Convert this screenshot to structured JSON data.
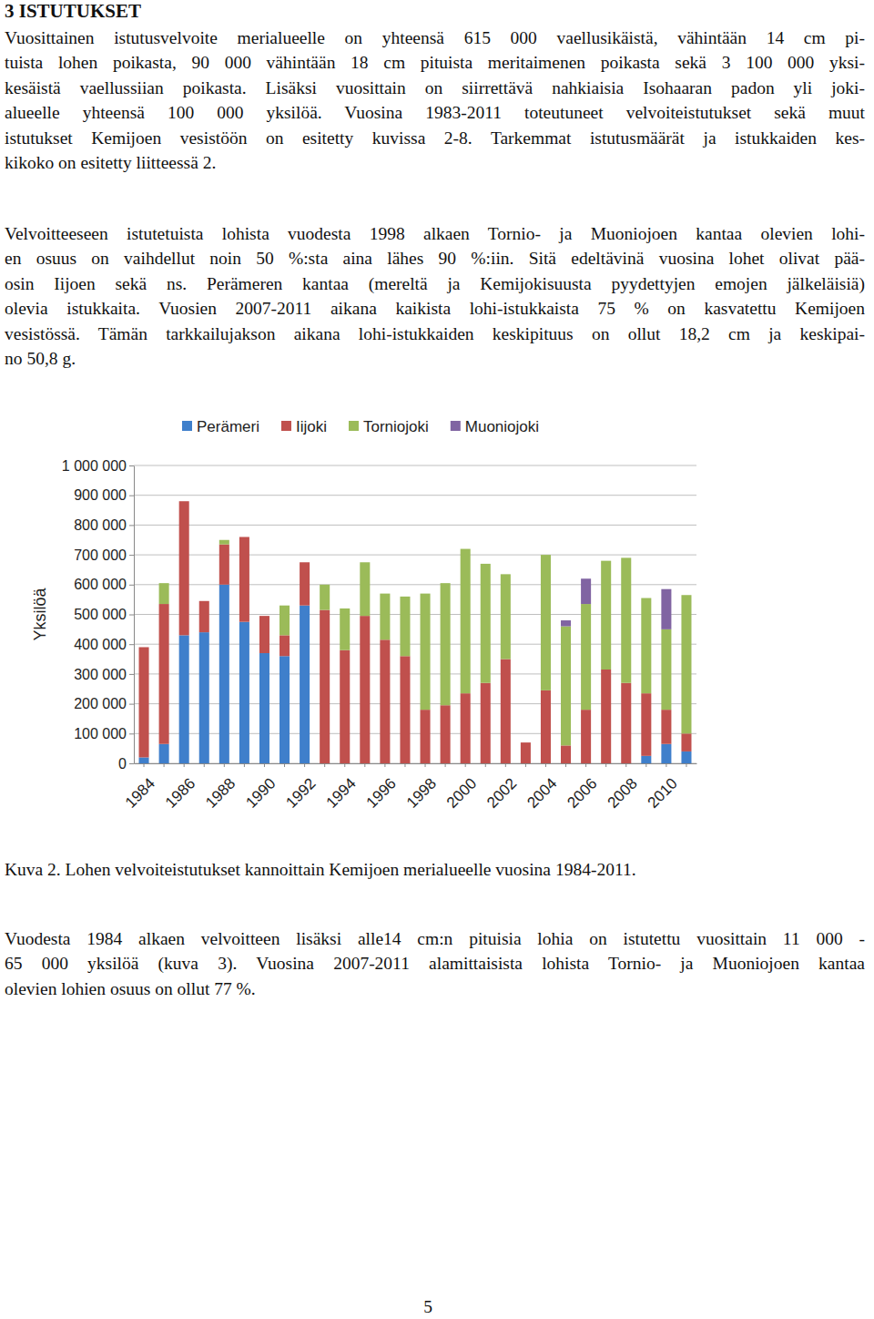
{
  "heading": "3 ISTUTUKSET",
  "paragraphs_before": [
    [
      "Vuosittainen istutusvelvoite merialueelle on yhteensä 615 000 vaellusikäistä, vähintään 14 cm pi-",
      "tuista lohen poikasta, 90 000 vähintään 18 cm pituista meritaimenen poikasta sekä 3 100 000 yksi-",
      "kesäistä vaellussiian poikasta. Lisäksi vuosittain on siirrettävä nahkiaisia Isohaaran padon yli joki-",
      "alueelle yhteensä 100 000 yksilöä. Vuosina 1983-2011 toteutuneet velvoiteistutukset sekä muut",
      "istutukset Kemijoen vesistöön on esitetty kuvissa 2-8. Tarkemmat istutusmäärät ja istukkaiden kes-",
      "kikoko on esitetty liitteessä 2."
    ],
    [
      "Velvoitteeseen istutetuista lohista vuodesta 1998 alkaen Tornio- ja Muoniojoen kantaa olevien lohi-",
      "en osuus on vaihdellut noin 50 %:sta aina lähes 90 %:iin. Sitä edeltävinä vuosina lohet olivat pää-",
      "osin Iijoen sekä ns. Perämeren kantaa (mereltä ja Kemijokisuusta pyydettyjen emojen jälkeläisiä)",
      "olevia istukkaita. Vuosien 2007-2011 aikana kaikista lohi-istukkaista 75 % on kasvatettu Kemijoen",
      "vesistössä. Tämän tarkkailujakson aikana lohi-istukkaiden keskipituus on ollut 18,2 cm ja keskipai-",
      "no 50,8 g."
    ]
  ],
  "chart_data": {
    "type": "bar",
    "stacked": true,
    "y_label": "Yksilöä",
    "legend": "top",
    "grid": true,
    "categories": [
      "1984",
      null,
      "1986",
      null,
      "1988",
      null,
      "1990",
      null,
      "1992",
      null,
      "1994",
      null,
      "1996",
      null,
      "1998",
      null,
      "2000",
      null,
      "2002",
      null,
      "2004",
      null,
      "2006",
      null,
      "2008",
      null,
      "2010",
      null
    ],
    "series": [
      {
        "name": "Perämeri",
        "color": "#3f7fcb",
        "values": [
          20000,
          65000,
          430000,
          440000,
          600000,
          475000,
          370000,
          360000,
          530000,
          0,
          0,
          0,
          0,
          0,
          0,
          0,
          0,
          0,
          0,
          0,
          0,
          0,
          0,
          0,
          0,
          25000,
          65000,
          40000
        ]
      },
      {
        "name": "Iijoki",
        "color": "#c0504d",
        "values": [
          370000,
          470000,
          450000,
          105000,
          135000,
          285000,
          125000,
          70000,
          145000,
          515000,
          380000,
          495000,
          415000,
          360000,
          180000,
          195000,
          235000,
          270000,
          350000,
          70000,
          245000,
          60000,
          180000,
          315000,
          270000,
          210000,
          115000,
          60000
        ]
      },
      {
        "name": "Torniojoki",
        "color": "#9bbb59",
        "values": [
          0,
          70000,
          0,
          0,
          15000,
          0,
          0,
          100000,
          0,
          85000,
          140000,
          180000,
          155000,
          200000,
          390000,
          410000,
          485000,
          400000,
          285000,
          0,
          455000,
          400000,
          355000,
          365000,
          420000,
          320000,
          270000,
          465000
        ]
      },
      {
        "name": "Muoniojoki",
        "color": "#8064a2",
        "values": [
          0,
          0,
          0,
          0,
          0,
          0,
          0,
          0,
          0,
          0,
          0,
          0,
          0,
          0,
          0,
          0,
          0,
          0,
          0,
          0,
          0,
          20000,
          85000,
          0,
          0,
          0,
          135000,
          0
        ]
      }
    ],
    "ylim": [
      0,
      1000000
    ],
    "yticks": [
      0,
      {
        "value": 100000,
        "label": "100 000"
      },
      {
        "value": 200000,
        "label": "200 000"
      },
      {
        "value": 300000,
        "label": "300 000"
      },
      {
        "value": 400000,
        "label": "400 000"
      },
      {
        "value": 500000,
        "label": "500 000"
      },
      {
        "value": 600000,
        "label": "600 000"
      },
      {
        "value": 700000,
        "label": "700 000"
      },
      {
        "value": 800000,
        "label": "800 000"
      },
      {
        "value": 900000,
        "label": "900 000"
      },
      {
        "value": 1000000,
        "label": "1 000 000"
      }
    ]
  },
  "caption": "Kuva 2. Lohen velvoiteistutukset kannoittain Kemijoen merialueelle vuosina 1984-2011.",
  "paragraphs_after": [
    [
      "Vuodesta 1984 alkaen velvoitteen lisäksi alle14 cm:n pituisia lohia on istutettu vuosittain 11 000 -",
      "65 000 yksilöä (kuva 3). Vuosina 2007-2011 alamittaisista lohista Tornio- ja Muoniojoen kantaa",
      "olevien lohien osuus on ollut 77 %."
    ]
  ],
  "page_number": "5"
}
